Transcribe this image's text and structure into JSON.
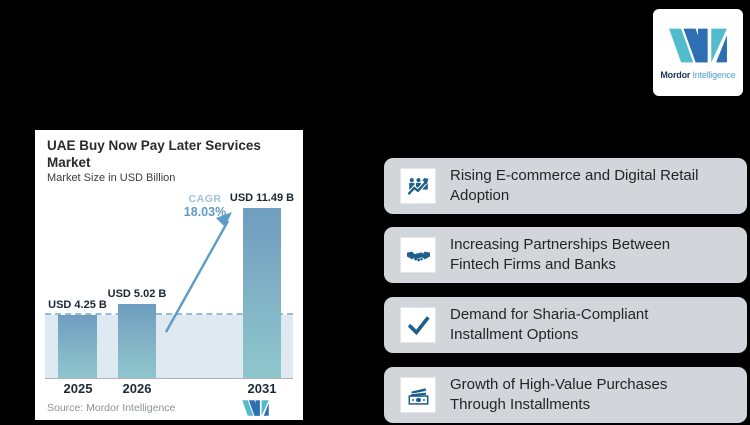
{
  "background_color": "#000000",
  "brand": {
    "name_bold": "Mordor",
    "name_light": "Intelligence",
    "colors": {
      "teal": "#52bccc",
      "blue": "#2e6fb3",
      "text_dark": "#17375e",
      "text_light": "#4f9fd4"
    }
  },
  "chart_card": {
    "title": "UAE Buy Now Pay Later Services\nMarket",
    "subtitle": "Market Size in USD Billion",
    "cagr_label": "CAGR",
    "source": "Source: Mordor Intelligence"
  },
  "chart_data": {
    "type": "bar",
    "title": "UAE Buy Now Pay Later Services Market",
    "subtitle": "Market Size in USD Billion",
    "categories": [
      "2025",
      "2026",
      "2031"
    ],
    "values": [
      4.25,
      5.02,
      11.49
    ],
    "value_labels": [
      "USD 4.25 B",
      "USD 5.02 B",
      "USD 11.49 B"
    ],
    "unit": "USD Billion",
    "cagr": "18.03%",
    "ylim": [
      0,
      12
    ],
    "grid": false,
    "annotations": [
      "CAGR 18.03% arrow from 2026 bar to 2031 bar",
      "dashed reference line at 2025 level with shaded band below"
    ],
    "source": "Source: Mordor Intelligence",
    "colors": {
      "bar_top": "#6f9dc0",
      "bar_bottom": "#8fc6cd",
      "band": "#dfe9f2",
      "dashed_line": "#93bed8",
      "cagr_accent": "#5e9cc8"
    }
  },
  "features": [
    {
      "icon": "people-growth-icon",
      "text": "Rising E-commerce and Digital Retail\nAdoption"
    },
    {
      "icon": "handshake-icon",
      "text": "Increasing Partnerships Between\nFintech Firms and Banks"
    },
    {
      "icon": "checkmark-icon",
      "text": "Demand for Sharia-Compliant\nInstallment Options"
    },
    {
      "icon": "banknote-icon",
      "text": "Growth of High-Value Purchases\nThrough Installments"
    }
  ],
  "icon_color": "#1e5f8c",
  "feature_card_bg": "#d2d6db"
}
